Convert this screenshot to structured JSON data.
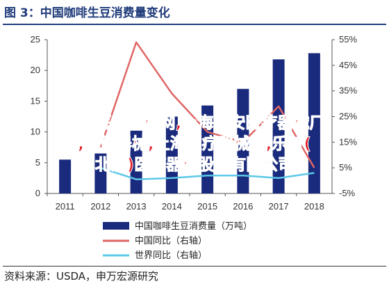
{
  "header": {
    "title": "图 3：中国咖啡生豆消费量变化"
  },
  "footer": {
    "source": "资料来源：USDA，申万宏源研究"
  },
  "watermark": {
    "line1": "中国医疗器械网,上海申安医疗器械厂",
    "line2": ",保健器械,上海医疗器械厂,乐普(",
    "line3": "北京)医疗器械股份有限公司"
  },
  "colors": {
    "bar": "#1a2a7c",
    "china_yoy": "#e06666",
    "world_yoy": "#5bc8e8",
    "title": "#1f3b7a"
  },
  "chart_data": {
    "type": "bar",
    "categories": [
      "2011",
      "2012",
      "2013",
      "2014",
      "2015",
      "2016",
      "2017",
      "2018"
    ],
    "series": [
      {
        "name": "中国咖啡生豆消费量（万吨）",
        "type": "bar",
        "axis": "left",
        "values": [
          5.5,
          6.5,
          10.2,
          12.5,
          14.3,
          17.0,
          21.8,
          22.8
        ]
      },
      {
        "name": "中国同比（右轴）",
        "type": "line",
        "axis": "right",
        "values": [
          null,
          13,
          54,
          34,
          19,
          15,
          29,
          5
        ]
      },
      {
        "name": "世界同比（右轴）",
        "type": "line",
        "axis": "right",
        "values": [
          null,
          5,
          0.5,
          1,
          2,
          2,
          1,
          3
        ]
      }
    ],
    "left_axis": {
      "ylim": [
        0,
        25
      ],
      "ticks": [
        0,
        5,
        10,
        15,
        20,
        25
      ]
    },
    "right_axis": {
      "ylim": [
        -5,
        55
      ],
      "ticks": [
        "-5%",
        "5%",
        "15%",
        "25%",
        "35%",
        "45%",
        "55%"
      ]
    },
    "legend": {
      "position": "bottom"
    },
    "grid": false
  }
}
